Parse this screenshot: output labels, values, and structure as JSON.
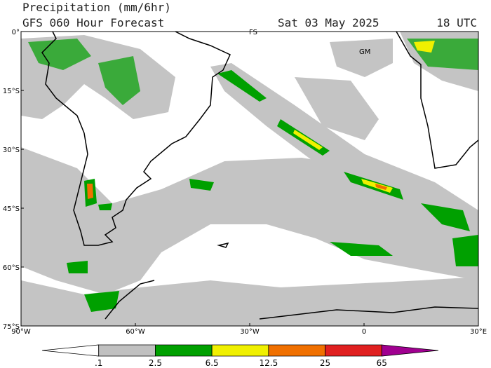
{
  "header": {
    "title": "Precipitation (mm/6hr)",
    "subtitle": "GFS 060 Hour Forecast",
    "date": "Sat 03 May 2025",
    "time": "18 UTC"
  },
  "lat_labels": [
    "0°",
    "15°S",
    "30°S",
    "45°S",
    "60°S",
    "75°S"
  ],
  "lon_labels": [
    "90°W",
    "60°W",
    "30°W",
    "0",
    "30°E"
  ],
  "map_labels": [
    "FS",
    "GM"
  ],
  "colorbar": {
    "labels": [
      ".1",
      "2.5",
      "6.5",
      "12.5",
      "25",
      "65"
    ],
    "colors": [
      "#ffffff",
      "#c0c0c0",
      "#00a000",
      "#f0f000",
      "#f07000",
      "#e02020",
      "#a00090"
    ]
  }
}
